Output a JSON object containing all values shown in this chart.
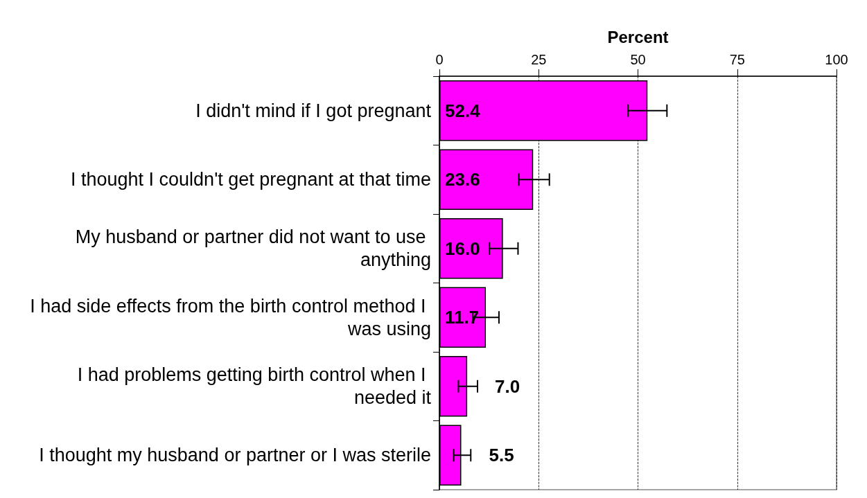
{
  "chart_data": {
    "type": "bar",
    "orientation": "horizontal",
    "xlabel": "Percent",
    "categories": [
      "I didn't mind if I got pregnant",
      "I thought I couldn't get pregnant at that time",
      "My husband or partner did not want to use anything",
      "I had side effects from the birth control method I was using",
      "I had problems getting birth control when I needed it",
      "I thought my husband or partner or I was sterile"
    ],
    "values": [
      52.4,
      23.6,
      16.0,
      11.7,
      7.0,
      5.5
    ],
    "value_labels": [
      "52.4",
      "23.6",
      "16.0",
      "11.7",
      "7.0",
      "5.5"
    ],
    "errors": [
      [
        47.5,
        57.3
      ],
      [
        20.0,
        27.7
      ],
      [
        12.6,
        19.8
      ],
      [
        8.4,
        15.0
      ],
      [
        4.8,
        9.6
      ],
      [
        3.6,
        7.9
      ]
    ],
    "color": "#ff00ff",
    "xlim": [
      0,
      100
    ],
    "xticks": [
      0,
      25,
      50,
      75,
      100
    ],
    "grid": "x"
  }
}
